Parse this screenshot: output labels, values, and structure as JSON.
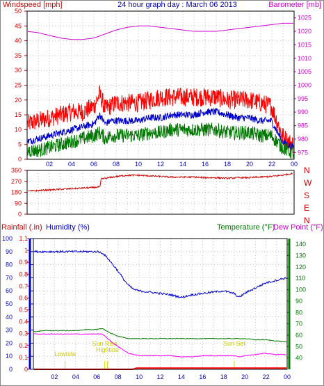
{
  "chart_data": [
    {
      "type": "line",
      "title": "24 hour graph day : March 06 2013",
      "left_label": "Windspeed [mph]",
      "right_label": "Barometer [mb]",
      "x_ticks": [
        "02",
        "04",
        "06",
        "08",
        "10",
        "12",
        "14",
        "16",
        "18",
        "20",
        "22",
        "00"
      ],
      "x_range_hours": [
        0,
        24
      ],
      "y_left": {
        "range": [
          0,
          50
        ],
        "ticks": [
          "0",
          "5",
          "10",
          "15",
          "20",
          "25",
          "30",
          "35",
          "40",
          "45",
          "50"
        ]
      },
      "y_right": {
        "range": [
          972.5,
          1027.5
        ],
        "ticks": [
          "975",
          "980",
          "985",
          "990",
          "995",
          "1000",
          "1005",
          "1010",
          "1015",
          "1020",
          "1025"
        ]
      },
      "grid": true,
      "series": [
        {
          "key": "wind_max",
          "color": "#ff0000",
          "axis": "left",
          "x": [
            0,
            1,
            2,
            3,
            4,
            5,
            6,
            6.5,
            7,
            7.5,
            8,
            9,
            10,
            11,
            12,
            13,
            14,
            15,
            16,
            17,
            18,
            19,
            20,
            21,
            22,
            23,
            23.5,
            24
          ],
          "y": [
            12,
            13,
            14,
            15,
            16,
            16,
            18,
            22,
            17,
            18,
            19,
            19,
            19,
            20,
            21,
            21,
            21,
            21,
            21,
            21,
            20,
            20,
            20,
            19,
            18,
            8,
            6,
            5
          ]
        },
        {
          "key": "wind_avg",
          "color": "#0000cc",
          "axis": "left",
          "x": [
            0,
            1,
            2,
            3,
            4,
            5,
            6,
            6.5,
            7,
            7.5,
            8,
            9,
            10,
            11,
            12,
            13,
            14,
            15,
            16,
            17,
            18,
            19,
            20,
            21,
            22,
            23,
            23.5,
            24
          ],
          "y": [
            6,
            7,
            8,
            9,
            10,
            11,
            12,
            15,
            12,
            13,
            13,
            13,
            13,
            14,
            14,
            15,
            15,
            15,
            16,
            16,
            15,
            14,
            14,
            13,
            13,
            6,
            5,
            4
          ]
        },
        {
          "key": "wind_min",
          "color": "#007700",
          "axis": "left",
          "x": [
            0,
            1,
            2,
            3,
            4,
            5,
            6,
            6.5,
            7,
            7.5,
            8,
            9,
            10,
            11,
            12,
            13,
            14,
            15,
            16,
            17,
            18,
            19,
            20,
            21,
            22,
            23,
            23.5,
            24
          ],
          "y": [
            3,
            3,
            4,
            5,
            6,
            7,
            8,
            9,
            7,
            8,
            8,
            8,
            8,
            9,
            9,
            10,
            10,
            10,
            10,
            10,
            9,
            9,
            9,
            8,
            8,
            4,
            3,
            2
          ]
        },
        {
          "key": "barometer",
          "color": "#cc00cc",
          "axis": "right",
          "x": [
            0,
            1,
            2,
            3,
            4,
            5,
            6,
            7,
            8,
            9,
            10,
            11,
            12,
            13,
            14,
            15,
            16,
            17,
            18,
            19,
            20,
            21,
            22,
            23,
            24
          ],
          "y": [
            1020,
            1019.5,
            1018.5,
            1017.5,
            1017,
            1017,
            1017.5,
            1019,
            1020.5,
            1021.5,
            1022,
            1022,
            1021.5,
            1021,
            1020.5,
            1020,
            1020,
            1020,
            1020.5,
            1021,
            1021.5,
            1022,
            1022.5,
            1023,
            1023
          ]
        }
      ]
    },
    {
      "type": "line",
      "title": "",
      "right_label_letters": [
        "N",
        "W",
        "S",
        "E",
        "N"
      ],
      "x_range_hours": [
        0,
        24
      ],
      "y_left": {
        "range": [
          0,
          360
        ],
        "ticks": [
          "0",
          "90",
          "180",
          "270",
          "360"
        ]
      },
      "grid": true,
      "series": [
        {
          "key": "wind_direction",
          "color": "#cc0000",
          "axis": "left",
          "x": [
            0,
            1,
            2,
            3,
            4,
            5,
            6,
            6.5,
            6.6,
            7,
            8,
            9,
            10,
            11,
            12,
            13,
            14,
            15,
            16,
            17,
            18,
            19,
            20,
            21,
            22,
            23,
            24
          ],
          "y": [
            190,
            195,
            200,
            205,
            210,
            215,
            220,
            225,
            290,
            295,
            310,
            320,
            320,
            315,
            310,
            305,
            305,
            305,
            300,
            300,
            295,
            300,
            300,
            305,
            310,
            320,
            335
          ]
        }
      ]
    },
    {
      "type": "line",
      "title": "",
      "labels": {
        "rainfall": "Rainfall (.in)",
        "humidity": "Humidity (%)",
        "temperature": "Temperature (°F)",
        "dewpoint": "Dew Point (°F)"
      },
      "x_ticks": [
        "02",
        "04",
        "06",
        "08",
        "10",
        "12",
        "14",
        "16",
        "18",
        "20",
        "22",
        "00"
      ],
      "x_range_hours": [
        0,
        24
      ],
      "y_rain": {
        "range": [
          0,
          1.1
        ],
        "ticks": [
          "0",
          "0.1",
          "0.2",
          "0.3",
          "0.4",
          "0.5",
          "0.6",
          "0.7",
          "0.8",
          "0.9",
          "1",
          "1.1"
        ]
      },
      "y_humidity": {
        "range": [
          0,
          100
        ],
        "ticks": [
          "0",
          "10",
          "20",
          "30",
          "40",
          "50",
          "60",
          "70",
          "80",
          "90",
          "100"
        ]
      },
      "y_temp": {
        "range": [
          30,
          145
        ],
        "ticks": [
          "40",
          "50",
          "60",
          "70",
          "80",
          "90",
          "100",
          "110",
          "120",
          "130",
          "140"
        ]
      },
      "grid": true,
      "annotations": [
        {
          "text": "Lowtide",
          "hour": 3
        },
        {
          "text": "Sun Rise",
          "hour": 6.75
        },
        {
          "text": "Hightide",
          "hour": 7
        },
        {
          "text": "Sun Set",
          "hour": 19
        }
      ],
      "series": [
        {
          "key": "humidity",
          "color": "#0000cc",
          "axis": "humidity",
          "x": [
            0,
            1,
            2,
            3,
            4,
            5,
            6,
            6.5,
            7,
            7.5,
            8,
            8.5,
            9,
            9.5,
            10,
            11,
            12,
            13,
            13.5,
            14,
            15,
            16,
            17,
            18,
            19,
            19.5,
            20,
            21,
            22,
            23,
            24
          ],
          "y": [
            90,
            90,
            90,
            90,
            90,
            90,
            90,
            89,
            85,
            80,
            75,
            69,
            64,
            61,
            60,
            59,
            58,
            57,
            56,
            55,
            57,
            58,
            59,
            60,
            58,
            55,
            58,
            62,
            66,
            68,
            70
          ]
        },
        {
          "key": "temperature",
          "color": "#007700",
          "axis": "temp",
          "x": [
            0,
            1,
            2,
            3,
            4,
            5,
            6,
            6.5,
            7,
            7.5,
            8,
            9,
            10,
            11,
            12,
            13,
            14,
            15,
            16,
            17,
            18,
            19,
            20,
            21,
            22,
            23,
            24
          ],
          "y": [
            63,
            64,
            64,
            64,
            64,
            65,
            65,
            66,
            63,
            61,
            59,
            57,
            57,
            57,
            57,
            57,
            57,
            57,
            57,
            57,
            57,
            57,
            57,
            56,
            56,
            55,
            54
          ]
        },
        {
          "key": "dewpoint",
          "color": "#ff00ff",
          "axis": "temp",
          "x": [
            0,
            1,
            2,
            3,
            4,
            5,
            6,
            6.5,
            7,
            7.5,
            8,
            8.5,
            9,
            9.5,
            10,
            11,
            12,
            13,
            14,
            15,
            16,
            17,
            18,
            19,
            19.5,
            20,
            21,
            22,
            23,
            24
          ],
          "y": [
            61,
            61,
            61,
            61,
            61,
            61,
            61,
            61,
            57,
            53,
            50,
            47,
            44,
            43,
            42,
            42,
            42,
            42,
            41,
            41,
            42,
            42,
            42,
            42,
            41,
            42,
            43,
            44,
            43,
            43
          ]
        },
        {
          "key": "rainfall",
          "color": "#ff0000",
          "axis": "rain",
          "x": [
            0,
            9.5,
            9.6,
            24
          ],
          "y": [
            0,
            0,
            0.01,
            0.01
          ]
        }
      ]
    }
  ]
}
